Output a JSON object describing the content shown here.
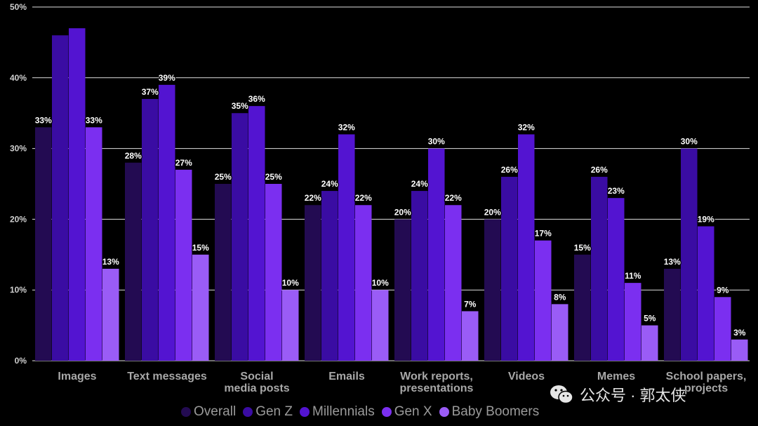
{
  "chart_data": {
    "type": "bar",
    "categories": [
      "Images",
      "Text messages",
      "Social\nmedia posts",
      "Emails",
      "Work reports,\npresentations",
      "Videos",
      "Memes",
      "School papers,\nprojects"
    ],
    "series": [
      {
        "name": "Overall",
        "color": "#230b52",
        "values": [
          33,
          28,
          25,
          22,
          20,
          20,
          15,
          13
        ]
      },
      {
        "name": "Gen Z",
        "color": "#3a0ca3",
        "values": [
          46,
          37,
          35,
          24,
          24,
          26,
          26,
          30
        ]
      },
      {
        "name": "Millennials",
        "color": "#5314d1",
        "values": [
          47,
          39,
          36,
          32,
          30,
          32,
          23,
          19
        ]
      },
      {
        "name": "Gen X",
        "color": "#7b2ff0",
        "values": [
          33,
          27,
          25,
          22,
          22,
          17,
          11,
          9
        ]
      },
      {
        "name": "Baby Boomers",
        "color": "#9a5cf6",
        "values": [
          13,
          15,
          10,
          10,
          7,
          8,
          5,
          3
        ]
      }
    ],
    "data_labels": [
      [
        "33%",
        "",
        "",
        "33%",
        "13%"
      ],
      [
        "28%",
        "37%",
        "39%",
        "27%",
        "15%"
      ],
      [
        "25%",
        "35%",
        "36%",
        "25%",
        "10%"
      ],
      [
        "22%",
        "24%",
        "32%",
        "22%",
        "10%"
      ],
      [
        "20%",
        "24%",
        "30%",
        "22%",
        "7%"
      ],
      [
        "20%",
        "26%",
        "32%",
        "17%",
        "8%"
      ],
      [
        "15%",
        "26%",
        "23%",
        "11%",
        "5%"
      ],
      [
        "13%",
        "30%",
        "19%",
        "9%",
        "3%"
      ]
    ],
    "ylim": [
      0,
      50
    ],
    "yticks": [
      0,
      10,
      20,
      30,
      40,
      50
    ],
    "ytick_labels": [
      "0%",
      "10%",
      "20%",
      "30%",
      "40%",
      "50%"
    ],
    "grid": true,
    "legend_position": "bottom-center",
    "title": "",
    "xlabel": "",
    "ylabel": ""
  },
  "watermark": {
    "icon": "wechat-icon",
    "text": "公众号 · 郭太侠"
  }
}
